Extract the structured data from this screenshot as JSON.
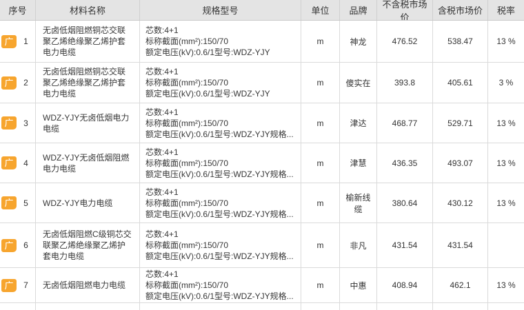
{
  "colors": {
    "accent_orange": "#F7A52E",
    "header_background": "#E4E4E4",
    "grid_border": "#DADADA"
  },
  "table": {
    "columns": [
      {
        "key": "seq",
        "label": "序号"
      },
      {
        "key": "name",
        "label": "材料名称"
      },
      {
        "key": "spec",
        "label": "规格型号"
      },
      {
        "key": "unit",
        "label": "单位"
      },
      {
        "key": "brand",
        "label": "品牌"
      },
      {
        "key": "price_ex_tax",
        "label": "不含税市场价"
      },
      {
        "key": "price_inc_tax",
        "label": "含税市场价"
      },
      {
        "key": "tax_rate",
        "label": "税率"
      }
    ],
    "rows": [
      {
        "icon": "广",
        "seq": "1",
        "name": "无卤低烟阻燃铜芯交联聚乙烯绝缘聚乙烯护套电力电缆",
        "spec": [
          "芯数:4+1",
          "标称截面(mm²):150/70",
          "额定电压(kV):0.6/1型号:WDZ-YJY"
        ],
        "unit": "m",
        "brand": "神龙",
        "price_ex_tax": "476.52",
        "price_inc_tax": "538.47",
        "tax_rate": "13 %"
      },
      {
        "icon": "广",
        "seq": "2",
        "name": "无卤低烟阻燃铜芯交联聚乙烯绝缘聚乙烯护套电力电缆",
        "spec": [
          "芯数:4+1",
          "标称截面(mm²):150/70",
          "额定电压(kV):0.6/1型号:WDZ-YJY"
        ],
        "unit": "m",
        "brand": "傻实在",
        "price_ex_tax": "393.8",
        "price_inc_tax": "405.61",
        "tax_rate": "3 %"
      },
      {
        "icon": "广",
        "seq": "3",
        "name": "WDZ-YJY无卤低烟电力电缆",
        "spec": [
          "芯数:4+1",
          "标称截面(mm²):150/70",
          "额定电压(kV):0.6/1型号:WDZ-YJY规格..."
        ],
        "unit": "m",
        "brand": "津达",
        "price_ex_tax": "468.77",
        "price_inc_tax": "529.71",
        "tax_rate": "13 %"
      },
      {
        "icon": "广",
        "seq": "4",
        "name": "WDZ-YJY无卤低烟阻燃电力电缆",
        "spec": [
          "芯数:4+1",
          "标称截面(mm²):150/70",
          "额定电压(kV):0.6/1型号:WDZ-YJY规格..."
        ],
        "unit": "m",
        "brand": "津慧",
        "price_ex_tax": "436.35",
        "price_inc_tax": "493.07",
        "tax_rate": "13 %"
      },
      {
        "icon": "广",
        "seq": "5",
        "name": "WDZ-YJY电力电缆",
        "spec": [
          "芯数:4+1",
          "标称截面(mm²):150/70",
          "额定电压(kV):0.6/1型号:WDZ-YJY规格..."
        ],
        "unit": "m",
        "brand": "榆新线缆",
        "price_ex_tax": "380.64",
        "price_inc_tax": "430.12",
        "tax_rate": "13 %"
      },
      {
        "icon": "广",
        "seq": "6",
        "name": "无卤低烟阻燃C级铜芯交联聚乙烯绝缘聚乙烯护套电力电缆",
        "spec": [
          "芯数:4+1",
          "标称截面(mm²):150/70",
          "额定电压(kV):0.6/1型号:WDZ-YJY规格..."
        ],
        "unit": "m",
        "brand": "非凡",
        "price_ex_tax": "431.54",
        "price_inc_tax": "431.54",
        "tax_rate": ""
      },
      {
        "icon": "广",
        "seq": "7",
        "name": "无卤低烟阻燃电力电缆",
        "spec": [
          "芯数:4+1",
          "标称截面(mm²):150/70",
          "额定电压(kV):0.6/1型号:WDZ-YJY规格..."
        ],
        "unit": "m",
        "brand": "中惠",
        "price_ex_tax": "408.94",
        "price_inc_tax": "462.1",
        "tax_rate": "13 %"
      }
    ]
  }
}
